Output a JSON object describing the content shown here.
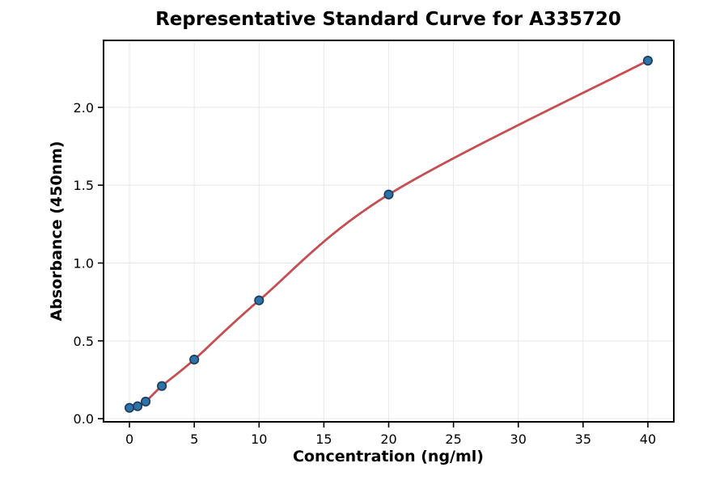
{
  "chart_data": {
    "type": "scatter",
    "title": "Representative Standard Curve for A335720",
    "xlabel": "Concentration (ng/ml)",
    "ylabel": "Absorbance (450nm)",
    "points": [
      {
        "x": 0,
        "y": 0.07
      },
      {
        "x": 0.625,
        "y": 0.08
      },
      {
        "x": 1.25,
        "y": 0.11
      },
      {
        "x": 2.5,
        "y": 0.21
      },
      {
        "x": 5,
        "y": 0.38
      },
      {
        "x": 10,
        "y": 0.76
      },
      {
        "x": 20,
        "y": 1.44
      },
      {
        "x": 40,
        "y": 2.3
      }
    ],
    "curve": "smooth",
    "xlim": [
      -2,
      42
    ],
    "ylim": [
      -0.02,
      2.43
    ],
    "xticks": [
      0,
      5,
      10,
      15,
      20,
      25,
      30,
      35,
      40
    ],
    "xtick_labels": [
      "0",
      "5",
      "10",
      "15",
      "20",
      "25",
      "30",
      "35",
      "40"
    ],
    "yticks": [
      0.0,
      0.5,
      1.0,
      1.5,
      2.0
    ],
    "ytick_labels": [
      "0.0",
      "0.5",
      "1.0",
      "1.5",
      "2.0"
    ],
    "grid": true,
    "legend": "none",
    "colors": {
      "line": "#c44e52",
      "marker_fill": "#2e72a8",
      "marker_edge": "#1d3d5f",
      "grid": "#e8e8e8",
      "frame": "#000000",
      "background": "#ffffff"
    }
  }
}
